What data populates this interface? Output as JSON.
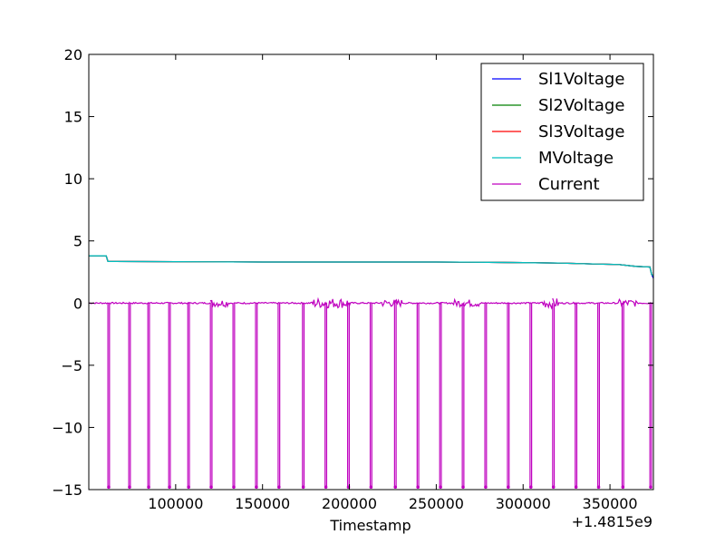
{
  "chart_data": {
    "type": "line",
    "title": "",
    "xlabel": "Timestamp",
    "ylabel": "",
    "x_offset_label": "+1.4815e9",
    "xlim": [
      50000,
      375000
    ],
    "ylim": [
      -15,
      20
    ],
    "x_ticks": [
      100000,
      150000,
      200000,
      250000,
      300000,
      350000
    ],
    "x_tick_labels": [
      "100000",
      "150000",
      "200000",
      "250000",
      "300000",
      "350000"
    ],
    "y_ticks": [
      -15,
      -10,
      -5,
      0,
      5,
      10,
      15,
      20
    ],
    "y_tick_labels": [
      "−15",
      "−10",
      "−5",
      "0",
      "5",
      "10",
      "15",
      "20"
    ],
    "grid": false,
    "legend_position": "upper-right",
    "series": [
      {
        "name": "Sl1Voltage",
        "color": "#0000ff",
        "x": [
          50000,
          60000,
          61000,
          100000,
          150000,
          200000,
          250000,
          280000,
          300000,
          320000,
          340000,
          355000,
          365000,
          373000,
          374000,
          375000
        ],
        "y": [
          3.8,
          3.8,
          3.35,
          3.33,
          3.3,
          3.3,
          3.3,
          3.28,
          3.25,
          3.22,
          3.15,
          3.1,
          2.95,
          2.9,
          2.3,
          2.0
        ]
      },
      {
        "name": "Sl2Voltage",
        "color": "#008000",
        "x": [
          50000,
          60000,
          61000,
          100000,
          150000,
          200000,
          250000,
          280000,
          300000,
          320000,
          340000,
          355000,
          365000,
          373000,
          374000,
          375000
        ],
        "y": [
          3.8,
          3.8,
          3.35,
          3.33,
          3.3,
          3.3,
          3.3,
          3.28,
          3.25,
          3.22,
          3.15,
          3.1,
          2.95,
          2.9,
          2.3,
          2.2
        ]
      },
      {
        "name": "Sl3Voltage",
        "color": "#ff0000",
        "x": [
          50000,
          60000,
          61000,
          100000,
          150000,
          200000,
          250000,
          280000,
          300000,
          320000,
          340000,
          355000,
          365000,
          373000,
          374000,
          375000
        ],
        "y": [
          3.8,
          3.8,
          3.35,
          3.33,
          3.3,
          3.3,
          3.3,
          3.28,
          3.25,
          3.22,
          3.15,
          3.1,
          2.95,
          2.9,
          2.3,
          2.2
        ]
      },
      {
        "name": "MVoltage",
        "color": "#00bfbf",
        "x": [
          50000,
          60000,
          61000,
          100000,
          150000,
          200000,
          250000,
          280000,
          300000,
          320000,
          340000,
          355000,
          365000,
          373000,
          374000,
          375000
        ],
        "y": [
          3.8,
          3.8,
          3.35,
          3.33,
          3.3,
          3.3,
          3.3,
          3.28,
          3.25,
          3.22,
          3.15,
          3.1,
          2.95,
          2.9,
          2.3,
          2.2
        ]
      },
      {
        "name": "Current",
        "color": "#bf00bf",
        "baseline": 0,
        "spike_value": -14.8,
        "spike_times": [
          61000,
          73000,
          84000,
          96000,
          107000,
          120000,
          133000,
          146000,
          159000,
          173000,
          186000,
          199000,
          212000,
          226000,
          239000,
          252000,
          265000,
          278000,
          291000,
          304000,
          317000,
          330000,
          343000,
          357000,
          373000
        ],
        "noise_regions": [
          {
            "x": [
              120000,
              130000
            ],
            "amplitude": 0.3
          },
          {
            "x": [
              178000,
              200000
            ],
            "amplitude": 0.4
          },
          {
            "x": [
              218000,
              230000
            ],
            "amplitude": 0.3
          },
          {
            "x": [
              260000,
              275000
            ],
            "amplitude": 0.3
          },
          {
            "x": [
              310000,
              320000
            ],
            "amplitude": 0.4
          },
          {
            "x": [
              355000,
              365000
            ],
            "amplitude": 0.3
          }
        ]
      }
    ]
  }
}
